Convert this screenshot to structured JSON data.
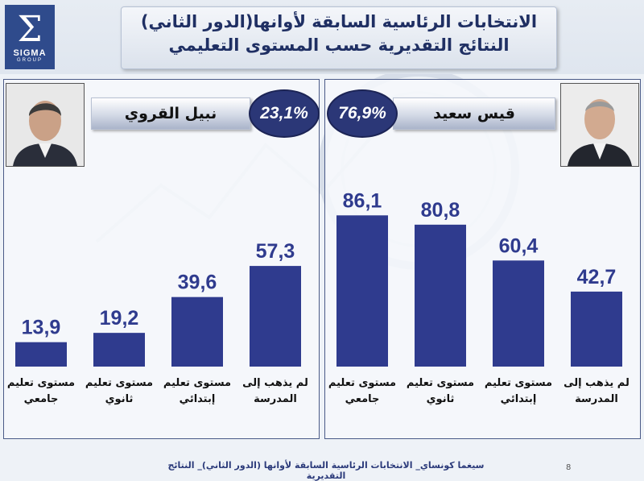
{
  "header": {
    "logo_symbol": "Σ",
    "logo_name": "SIGMA",
    "logo_sub": "GROUP",
    "title_line1": "الانتخابات الرئاسية السابقة لأوانها(الدور الثاني)",
    "title_line2": "النتائج التقديرية حسب المستوى التعليمي"
  },
  "left": {
    "candidate": "نبيل القروي",
    "percent": "23,1%"
  },
  "right": {
    "candidate": "قيس سعيد",
    "percent": "76,9%"
  },
  "footer": {
    "text": "سيغما كونساي_ الانتخابات الرئاسية السابقة لأوانها (الدور الثاني)_ النتائج التقديرية",
    "page": "8"
  },
  "colors": {
    "bar": "#2f3b8e",
    "value": "#2f3b8e",
    "badge": "#2b3777"
  },
  "chart_data": [
    {
      "type": "bar",
      "title": "نبيل القروي",
      "categories": [
        [
          "مستوى تعليم",
          "جامعي"
        ],
        [
          "مستوى تعليم",
          "ثانوي"
        ],
        [
          "مستوى تعليم",
          "إبتدائي"
        ],
        [
          "لم يذهب إلى",
          "المدرسة"
        ]
      ],
      "values": [
        13.9,
        19.2,
        39.6,
        57.3
      ],
      "value_labels": [
        "13,9",
        "19,2",
        "39,6",
        "57,3"
      ],
      "ylim": [
        0,
        100
      ],
      "grid": false
    },
    {
      "type": "bar",
      "title": "قيس سعيد",
      "categories": [
        [
          "مستوى تعليم",
          "جامعي"
        ],
        [
          "مستوى تعليم",
          "ثانوي"
        ],
        [
          "مستوى تعليم",
          "إبتدائي"
        ],
        [
          "لم يذهب إلى",
          "المدرسة"
        ]
      ],
      "values": [
        86.1,
        80.8,
        60.4,
        42.7
      ],
      "value_labels": [
        "86,1",
        "80,8",
        "60,4",
        "42,7"
      ],
      "ylim": [
        0,
        100
      ],
      "grid": false
    }
  ]
}
